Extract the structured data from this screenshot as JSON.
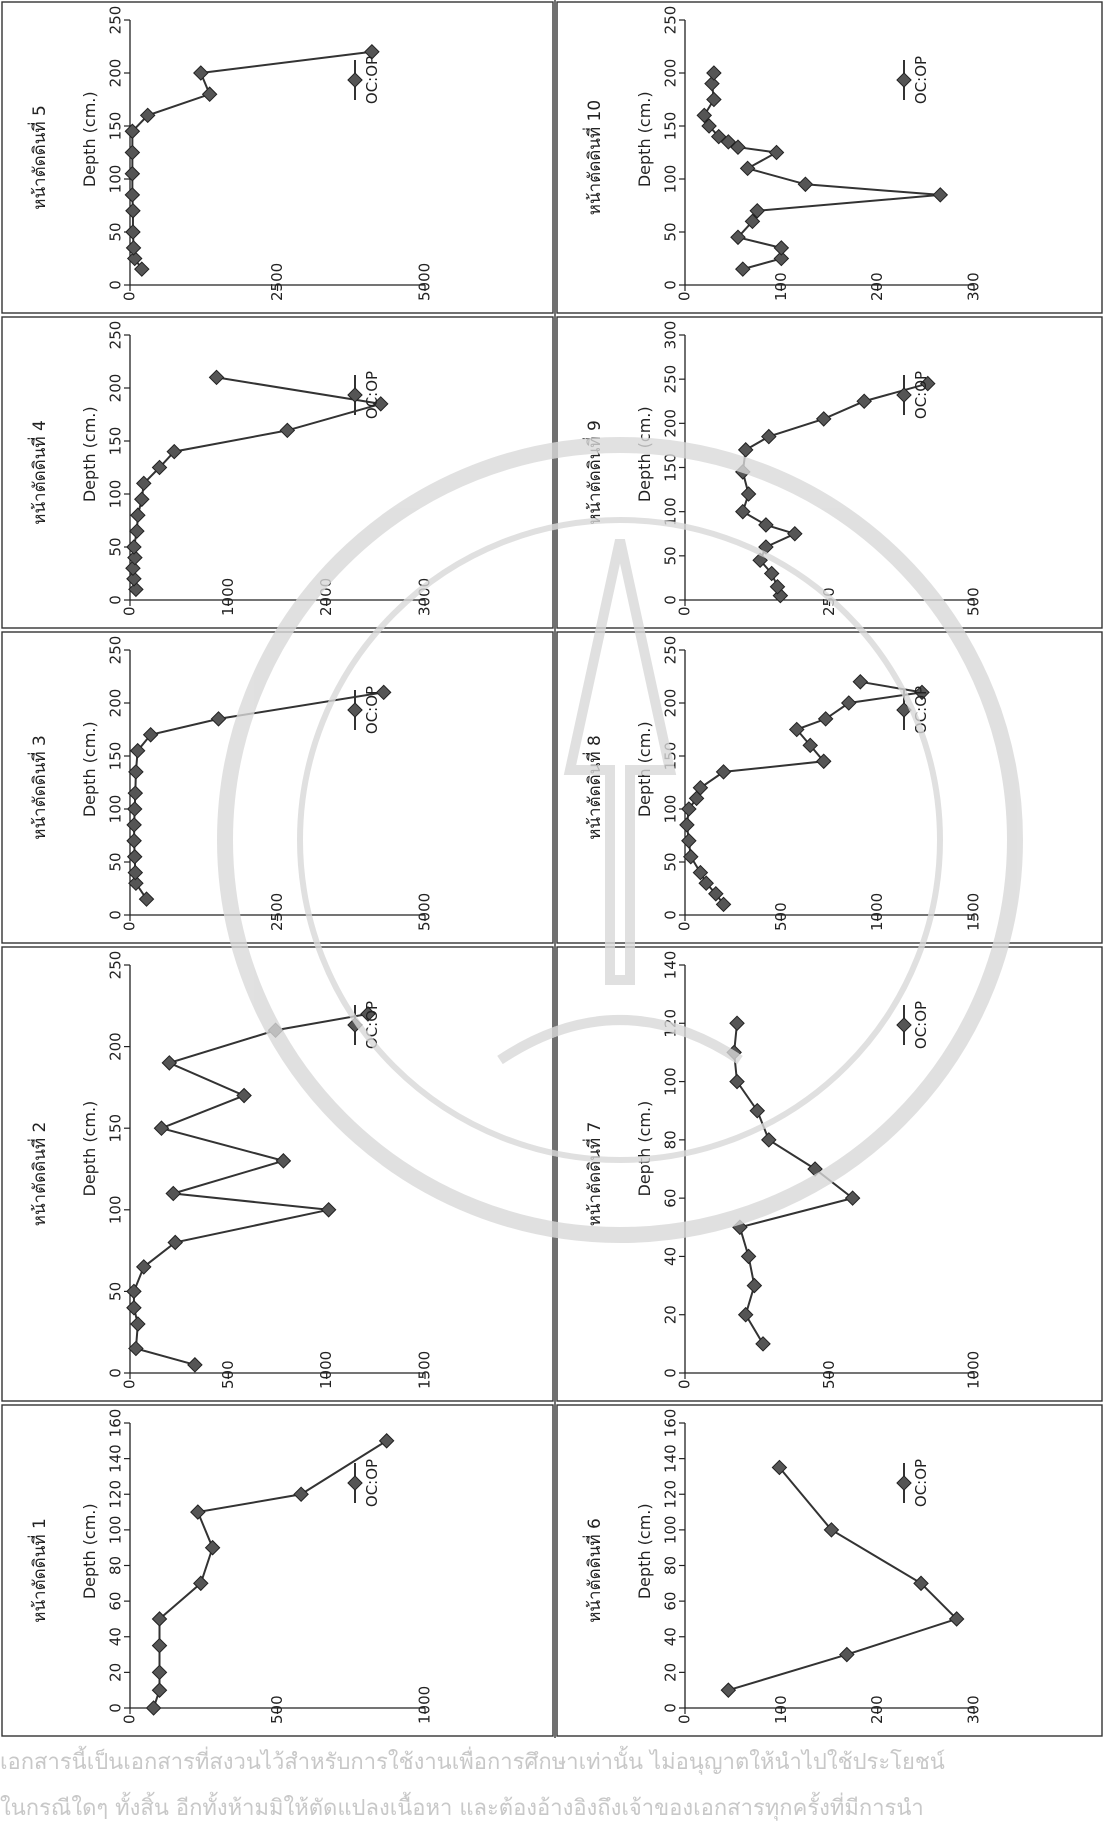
{
  "chart_data": [
    {
      "type": "line",
      "title": "หน้าตัดดินที่ 1",
      "xlabel": "Depth (cm.)",
      "ylabel": "",
      "legend": "OC:OP",
      "xlim": [
        0,
        160
      ],
      "ylim": [
        0,
        1000
      ],
      "xticks": [
        0,
        20,
        40,
        60,
        80,
        100,
        120,
        140,
        160
      ],
      "yticks": [
        0,
        500,
        1000
      ],
      "x": [
        5,
        20,
        40,
        60,
        80,
        100,
        120,
        140,
        160
      ],
      "points": [
        [
          0,
          80
        ],
        [
          10,
          100
        ],
        [
          20,
          100
        ],
        [
          35,
          100
        ],
        [
          50,
          100
        ],
        [
          70,
          240
        ],
        [
          90,
          280
        ],
        [
          110,
          230
        ],
        [
          120,
          580
        ],
        [
          150,
          870
        ]
      ]
    },
    {
      "type": "line",
      "title": "หน้าตัดดินที่ 2",
      "xlabel": "Depth (cm.)",
      "ylabel": "",
      "legend": "OC:OP",
      "xlim": [
        0,
        250
      ],
      "ylim": [
        0,
        1500
      ],
      "xticks": [
        0,
        50,
        100,
        150,
        200,
        250
      ],
      "yticks": [
        0,
        500,
        1000,
        1500
      ],
      "points": [
        [
          5,
          330
        ],
        [
          15,
          30
        ],
        [
          30,
          40
        ],
        [
          40,
          20
        ],
        [
          50,
          20
        ],
        [
          65,
          70
        ],
        [
          80,
          230
        ],
        [
          100,
          1010
        ],
        [
          110,
          220
        ],
        [
          130,
          780
        ],
        [
          150,
          160
        ],
        [
          170,
          580
        ],
        [
          190,
          200
        ],
        [
          210,
          740
        ],
        [
          220,
          1210
        ]
      ]
    },
    {
      "type": "line",
      "title": "หน้าตัดดินที่ 3",
      "xlabel": "Depth (cm.)",
      "ylabel": "",
      "legend": "OC:OP",
      "xlim": [
        0,
        250
      ],
      "ylim": [
        0,
        5000
      ],
      "xticks": [
        0,
        50,
        100,
        150,
        200,
        250
      ],
      "yticks": [
        0,
        2500,
        5000
      ],
      "points": [
        [
          15,
          280
        ],
        [
          30,
          100
        ],
        [
          40,
          90
        ],
        [
          55,
          80
        ],
        [
          70,
          70
        ],
        [
          85,
          70
        ],
        [
          100,
          80
        ],
        [
          115,
          90
        ],
        [
          135,
          100
        ],
        [
          155,
          130
        ],
        [
          170,
          350
        ],
        [
          185,
          1500
        ],
        [
          210,
          4300
        ]
      ]
    },
    {
      "type": "line",
      "title": "หน้าตัดดินที่ 4",
      "xlabel": "Depth (cm.)",
      "ylabel": "",
      "legend": "OC:OP",
      "xlim": [
        0,
        250
      ],
      "ylim": [
        0,
        3000
      ],
      "xticks": [
        0,
        50,
        100,
        150,
        200,
        250
      ],
      "yticks": [
        0,
        1000,
        2000,
        3000
      ],
      "points": [
        [
          10,
          60
        ],
        [
          20,
          40
        ],
        [
          30,
          30
        ],
        [
          40,
          50
        ],
        [
          50,
          40
        ],
        [
          65,
          70
        ],
        [
          80,
          80
        ],
        [
          95,
          120
        ],
        [
          110,
          140
        ],
        [
          125,
          300
        ],
        [
          140,
          450
        ],
        [
          160,
          1600
        ],
        [
          185,
          2550
        ],
        [
          210,
          880
        ]
      ]
    },
    {
      "type": "line",
      "title": "หน้าตัดดินที่ 5",
      "xlabel": "Depth (cm.)",
      "ylabel": "",
      "legend": "OC:OP",
      "xlim": [
        0,
        250
      ],
      "ylim": [
        0,
        5000
      ],
      "xticks": [
        0,
        50,
        100,
        150,
        200,
        250
      ],
      "yticks": [
        0,
        2500,
        5000
      ],
      "points": [
        [
          15,
          200
        ],
        [
          25,
          80
        ],
        [
          35,
          60
        ],
        [
          50,
          50
        ],
        [
          70,
          50
        ],
        [
          85,
          40
        ],
        [
          105,
          40
        ],
        [
          125,
          40
        ],
        [
          145,
          40
        ],
        [
          160,
          300
        ],
        [
          180,
          1350
        ],
        [
          200,
          1200
        ],
        [
          220,
          4100
        ]
      ]
    },
    {
      "type": "line",
      "title": "หน้าตัดดินที่ 6",
      "xlabel": "Depth (cm.)",
      "ylabel": "",
      "legend": "OC:OP",
      "xlim": [
        0,
        160
      ],
      "ylim": [
        0,
        300
      ],
      "xticks": [
        0,
        20,
        40,
        60,
        80,
        100,
        120,
        140,
        160
      ],
      "yticks": [
        0,
        100,
        200,
        300
      ],
      "points": [
        [
          10,
          45
        ],
        [
          30,
          168
        ],
        [
          50,
          282
        ],
        [
          70,
          245
        ],
        [
          100,
          152
        ],
        [
          135,
          98
        ]
      ]
    },
    {
      "type": "line",
      "title": "หน้าตัดดินที่ 7",
      "xlabel": "Depth (cm.)",
      "ylabel": "",
      "legend": "OC:OP",
      "xlim": [
        0,
        140
      ],
      "ylim": [
        0,
        1000
      ],
      "xticks": [
        0,
        20,
        40,
        60,
        80,
        100,
        120,
        140
      ],
      "yticks": [
        0,
        500,
        1000
      ],
      "points": [
        [
          10,
          270
        ],
        [
          20,
          210
        ],
        [
          30,
          240
        ],
        [
          40,
          220
        ],
        [
          50,
          190
        ],
        [
          60,
          580
        ],
        [
          70,
          450
        ],
        [
          80,
          290
        ],
        [
          90,
          250
        ],
        [
          100,
          180
        ],
        [
          110,
          170
        ],
        [
          120,
          180
        ]
      ]
    },
    {
      "type": "line",
      "title": "หน้าตัดดินที่ 8",
      "xlabel": "Depth (cm.)",
      "ylabel": "",
      "legend": "OC:OP",
      "xlim": [
        0,
        250
      ],
      "ylim": [
        0,
        1500
      ],
      "xticks": [
        0,
        50,
        100,
        150,
        200,
        250
      ],
      "yticks": [
        0,
        500,
        1000,
        1500
      ],
      "points": [
        [
          10,
          200
        ],
        [
          20,
          160
        ],
        [
          30,
          110
        ],
        [
          40,
          80
        ],
        [
          55,
          30
        ],
        [
          70,
          20
        ],
        [
          85,
          10
        ],
        [
          100,
          20
        ],
        [
          110,
          60
        ],
        [
          120,
          80
        ],
        [
          135,
          200
        ],
        [
          145,
          720
        ],
        [
          160,
          650
        ],
        [
          175,
          580
        ],
        [
          185,
          730
        ],
        [
          200,
          850
        ],
        [
          210,
          1230
        ],
        [
          220,
          910
        ]
      ]
    },
    {
      "type": "line",
      "title": "หน้าตัดดินที่ 9",
      "xlabel": "Depth (cm.)",
      "ylabel": "",
      "legend": "OC:OP",
      "xlim": [
        0,
        300
      ],
      "ylim": [
        0,
        500
      ],
      "xticks": [
        0,
        50,
        100,
        150,
        200,
        250,
        300
      ],
      "yticks": [
        0,
        250,
        500
      ],
      "points": [
        [
          5,
          165
        ],
        [
          15,
          160
        ],
        [
          30,
          150
        ],
        [
          45,
          130
        ],
        [
          60,
          140
        ],
        [
          75,
          190
        ],
        [
          85,
          140
        ],
        [
          100,
          100
        ],
        [
          120,
          110
        ],
        [
          145,
          100
        ],
        [
          170,
          105
        ],
        [
          185,
          145
        ],
        [
          205,
          240
        ],
        [
          225,
          310
        ],
        [
          245,
          420
        ]
      ]
    },
    {
      "type": "line",
      "title": "หน้าตัดดินที่ 10",
      "xlabel": "Depth (cm.)",
      "ylabel": "",
      "legend": "OC:OP",
      "xlim": [
        0,
        250
      ],
      "ylim": [
        0,
        300
      ],
      "xticks": [
        0,
        50,
        100,
        150,
        200,
        250
      ],
      "yticks": [
        0,
        100,
        200,
        300
      ],
      "points": [
        [
          15,
          60
        ],
        [
          25,
          100
        ],
        [
          35,
          100
        ],
        [
          45,
          55
        ],
        [
          60,
          70
        ],
        [
          70,
          75
        ],
        [
          85,
          265
        ],
        [
          95,
          125
        ],
        [
          110,
          65
        ],
        [
          125,
          95
        ],
        [
          130,
          55
        ],
        [
          135,
          45
        ],
        [
          140,
          35
        ],
        [
          150,
          25
        ],
        [
          160,
          20
        ],
        [
          175,
          30
        ],
        [
          190,
          28
        ],
        [
          200,
          30
        ]
      ]
    }
  ],
  "footer": {
    "line1": "เอกสารนี้เป็นเอกสารที่สงวนไว้สำหรับการใช้งานเพื่อการศึกษาเท่านั้น ไม่อนุญาตให้นำไปใช้ประโยชน์",
    "line2": "ในกรณีใดๆ ทั้งสิ้น อีกทั้งห้ามมิให้ตัดแปลงเนื้อหา และต้องอ้างอิงถึงเจ้าของเอกสารทุกครั้งที่มีการนำ"
  },
  "seal": {
    "color": "#d9d9d9"
  }
}
